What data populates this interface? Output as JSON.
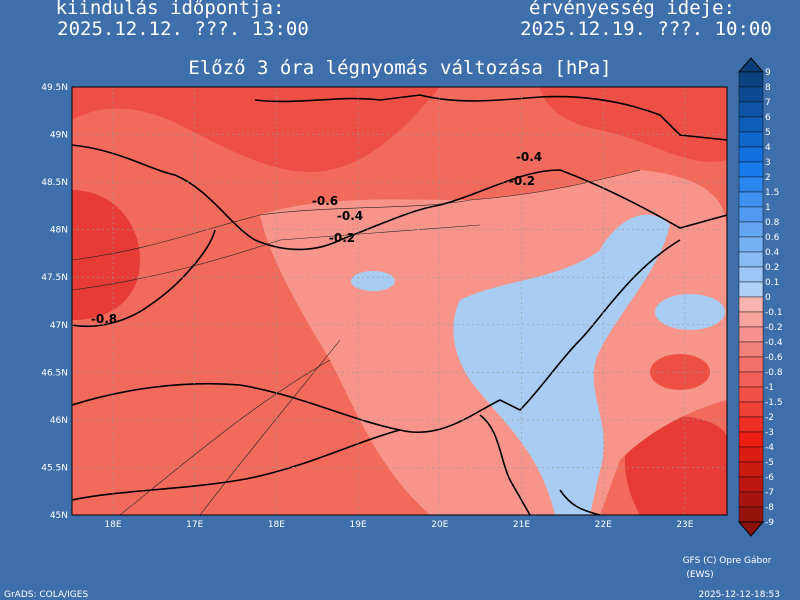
{
  "header": {
    "init_label": "kiindulás időpontja:",
    "init_time": "2025.12.12. ???. 13:00",
    "valid_label": "érvényesség ideje:",
    "valid_time": "2025.12.19. ???. 10:00"
  },
  "title": "Előző 3 óra légnyomás változása [hPa]",
  "map": {
    "lat_labels": [
      "49.5N",
      "49N",
      "48.5N",
      "48N",
      "47.5N",
      "47N",
      "46.5N",
      "46N",
      "45.5N",
      "45N"
    ],
    "lon_labels": [
      "18E",
      "17E",
      "18E",
      "19E",
      "20E",
      "21E",
      "22E",
      "23E"
    ],
    "contour_labels": [
      "-0.4",
      "-0.2",
      "-0.6",
      "-0.4",
      "-0.2",
      "-0.8"
    ]
  },
  "colorbar": {
    "labels": [
      "9",
      "8",
      "7",
      "6",
      "5",
      "4",
      "3",
      "2",
      "1.5",
      "1",
      "0.8",
      "0.6",
      "0.4",
      "0.2",
      "0.1",
      "0",
      "-0.1",
      "-0.2",
      "-0.4",
      "-0.6",
      "-0.8",
      "-1",
      "-1.5",
      "-2",
      "-3",
      "-4",
      "-5",
      "-6",
      "-7",
      "-8",
      "-9"
    ]
  },
  "footer": {
    "credit": "GFS (C) Opre Gábor",
    "credit_sub": "(EWS)",
    "software": "GrADS: COLA/IGES",
    "timestamp": "2025-12-12-18:53"
  }
}
